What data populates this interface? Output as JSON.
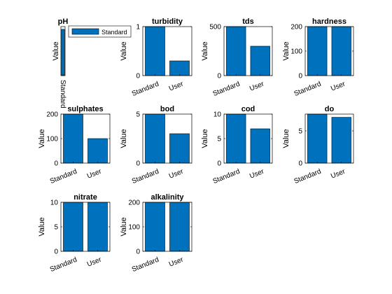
{
  "figure": {
    "bar_color": "#0072BD",
    "bar_edge_color": "#000000",
    "axes_color": "#000000",
    "ylabel": "Value"
  },
  "chart_data": [
    {
      "type": "bar",
      "title": "pH",
      "ylabel": "Value",
      "categories": [
        "Standard"
      ],
      "values": [
        8.5
      ],
      "ylim": [
        0,
        9
      ],
      "yticks": [],
      "legend": {
        "label": "Standard",
        "position": "right"
      },
      "squeezed": true
    },
    {
      "type": "bar",
      "title": "turbidity",
      "ylabel": "Value",
      "categories": [
        "Standard",
        "User"
      ],
      "values": [
        1,
        0.3
      ],
      "ylim": [
        0,
        1
      ],
      "yticks": [
        0,
        1
      ]
    },
    {
      "type": "bar",
      "title": "tds",
      "ylabel": "Value",
      "categories": [
        "Standard",
        "User"
      ],
      "values": [
        500,
        300
      ],
      "ylim": [
        0,
        500
      ],
      "yticks": [
        0,
        500
      ]
    },
    {
      "type": "bar",
      "title": "hardness",
      "ylabel": "Value",
      "categories": [
        "Standard",
        "User"
      ],
      "values": [
        200,
        200
      ],
      "ylim": [
        0,
        200
      ],
      "yticks": [
        0,
        100,
        200
      ]
    },
    {
      "type": "bar",
      "title": "sulphates",
      "ylabel": "Value",
      "categories": [
        "Standard",
        "User"
      ],
      "values": [
        200,
        100
      ],
      "ylim": [
        0,
        200
      ],
      "yticks": [
        0,
        100,
        200
      ]
    },
    {
      "type": "bar",
      "title": "bod",
      "ylabel": "Value",
      "categories": [
        "Standard",
        "User"
      ],
      "values": [
        5,
        3
      ],
      "ylim": [
        0,
        5
      ],
      "yticks": [
        0,
        5
      ]
    },
    {
      "type": "bar",
      "title": "cod",
      "ylabel": "Value",
      "categories": [
        "Standard",
        "User"
      ],
      "values": [
        10,
        7
      ],
      "ylim": [
        0,
        10
      ],
      "yticks": [
        0,
        5,
        10
      ]
    },
    {
      "type": "bar",
      "title": "do",
      "ylabel": "Value",
      "categories": [
        "Standard",
        "User"
      ],
      "values": [
        7.6,
        7.1
      ],
      "ylim": [
        0,
        7.6
      ],
      "yticks": [
        0,
        5
      ]
    },
    {
      "type": "bar",
      "title": "nitrate",
      "ylabel": "Value",
      "categories": [
        "Standard",
        "User"
      ],
      "values": [
        10,
        10
      ],
      "ylim": [
        0,
        10
      ],
      "yticks": [
        0,
        5,
        10
      ]
    },
    {
      "type": "bar",
      "title": "alkalinity",
      "ylabel": "Value",
      "categories": [
        "Standard",
        "User"
      ],
      "values": [
        200,
        200
      ],
      "ylim": [
        0,
        200
      ],
      "yticks": [
        0,
        100,
        200
      ]
    }
  ]
}
